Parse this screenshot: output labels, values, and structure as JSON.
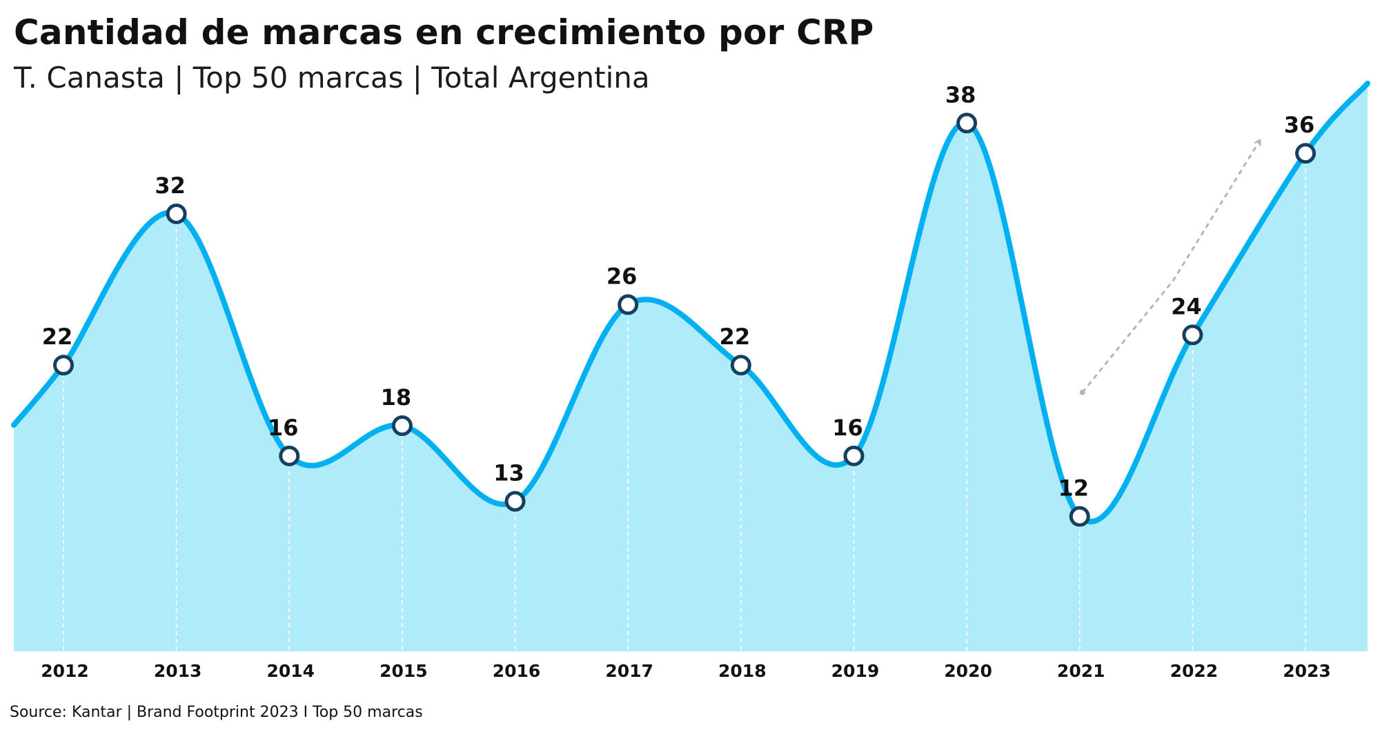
{
  "header": {
    "title": "Cantidad de marcas en crecimiento por CRP",
    "subtitle": "T. Canasta | Top 50 marcas | Total Argentina"
  },
  "footer": {
    "source": "Source: Kantar | Brand Footprint 2023 I Top 50 marcas"
  },
  "colors": {
    "line": "#00b0f0",
    "area": "#b0ebf9",
    "marker_stroke": "#15405f",
    "marker_fill": "#ffffff",
    "gridline": "#ffffff",
    "arrow": "#b5b5b5"
  },
  "chart_data": {
    "type": "area",
    "title": "Cantidad de marcas en crecimiento por CRP",
    "subtitle": "T. Canasta | Top 50 marcas | Total Argentina",
    "xlabel": "",
    "ylabel": "",
    "categories": [
      "2012",
      "2013",
      "2014",
      "2015",
      "2016",
      "2017",
      "2018",
      "2019",
      "2020",
      "2021",
      "2022",
      "2023"
    ],
    "series": [
      {
        "values": [
          22,
          32,
          16,
          18,
          13,
          26,
          22,
          16,
          38,
          12,
          24,
          36
        ]
      }
    ],
    "data_labels": true,
    "smooth": true,
    "grid": "vertical dashed lines at each year",
    "legend": "none",
    "ylim": [
      0,
      40
    ],
    "annotation": "dashed grey trend arrow from 2021 pointing up toward 2023"
  }
}
